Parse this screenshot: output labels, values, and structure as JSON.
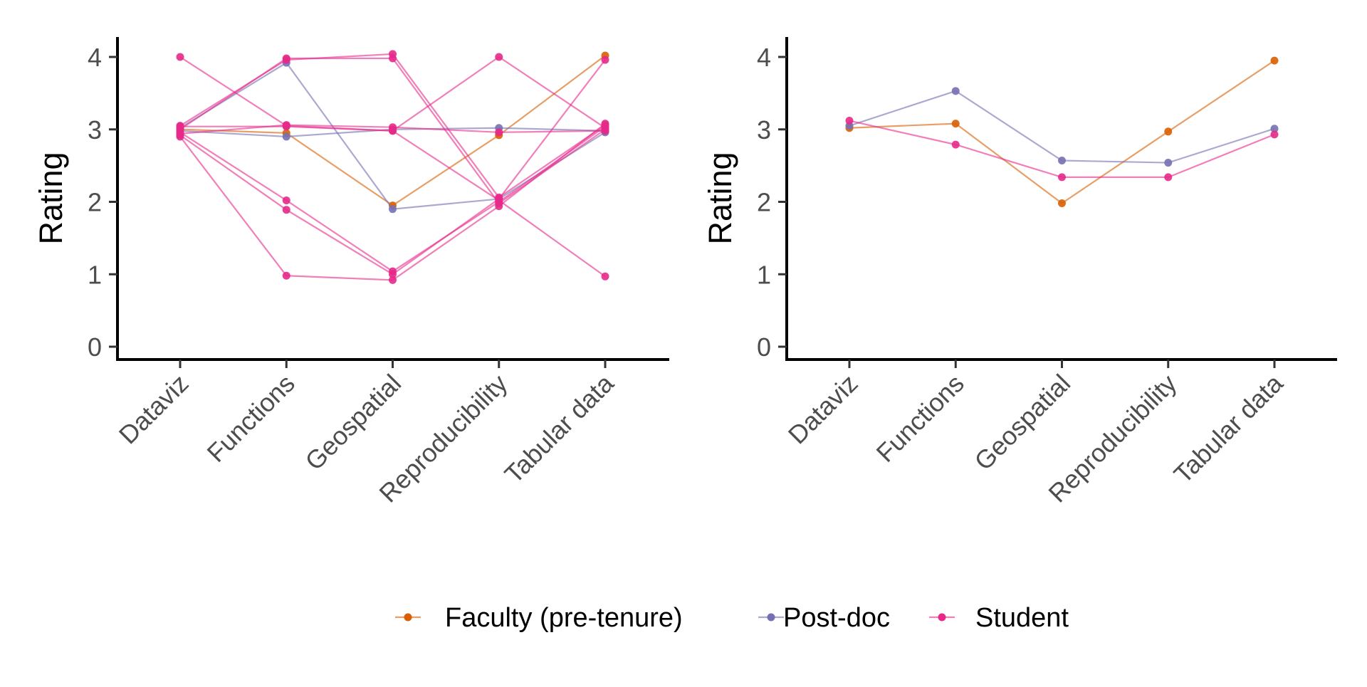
{
  "chart_data": [
    {
      "type": "line",
      "ylabel": "Rating",
      "xlabel": "",
      "ylim": [
        -0.2,
        4.25
      ],
      "yticks": [
        0,
        1,
        2,
        3,
        4
      ],
      "categories": [
        "Dataviz",
        "Functions",
        "Geospatial",
        "Reproducibility",
        "Tabular data"
      ],
      "grid": false,
      "series": [
        {
          "name": "Faculty (pre-tenure)",
          "values": [
            3.0,
            2.95,
            1.95,
            2.92,
            4.02
          ]
        },
        {
          "name": "Post-doc",
          "values": [
            3.02,
            3.92,
            1.9,
            2.04,
            2.96
          ]
        },
        {
          "name": "Post-doc",
          "values": [
            2.98,
            2.9,
            3.0,
            3.02,
            2.98
          ]
        },
        {
          "name": "Student",
          "values": [
            3.05,
            3.96,
            4.04,
            2.06,
            3.06
          ]
        },
        {
          "name": "Student",
          "values": [
            3.0,
            3.98,
            3.98,
            1.98,
            3.0
          ]
        },
        {
          "name": "Student",
          "values": [
            2.94,
            3.06,
            3.03,
            2.96,
            2.98
          ]
        },
        {
          "name": "Student",
          "values": [
            4.0,
            3.05,
            2.98,
            4.0,
            3.02
          ]
        },
        {
          "name": "Student",
          "values": [
            2.96,
            2.02,
            1.04,
            2.0,
            3.04
          ]
        },
        {
          "name": "Student",
          "values": [
            2.92,
            1.89,
            1.0,
            2.04,
            3.96
          ]
        },
        {
          "name": "Student",
          "values": [
            2.9,
            0.98,
            0.92,
            1.94,
            3.08
          ]
        },
        {
          "name": "Student",
          "values": [
            3.04,
            3.04,
            2.98,
            2.02,
            0.97
          ]
        }
      ]
    },
    {
      "type": "line",
      "ylabel": "Rating",
      "xlabel": "",
      "ylim": [
        -0.2,
        4.25
      ],
      "yticks": [
        0,
        1,
        2,
        3,
        4
      ],
      "categories": [
        "Dataviz",
        "Functions",
        "Geospatial",
        "Reproducibility",
        "Tabular data"
      ],
      "grid": false,
      "series": [
        {
          "name": "Faculty (pre-tenure)",
          "values": [
            3.02,
            3.08,
            1.98,
            2.97,
            3.95
          ]
        },
        {
          "name": "Post-doc",
          "values": [
            3.05,
            3.53,
            2.57,
            2.54,
            3.01
          ]
        },
        {
          "name": "Student",
          "values": [
            3.12,
            2.79,
            2.34,
            2.34,
            2.93
          ]
        }
      ]
    }
  ],
  "legend": {
    "placement": "bottom",
    "items": [
      {
        "label": "Faculty (pre-tenure)",
        "color": "#d95f02"
      },
      {
        "label": "Post-doc",
        "color": "#7570b3"
      },
      {
        "label": "Student",
        "color": "#e7298a"
      }
    ]
  },
  "colors": {
    "Faculty (pre-tenure)": "#d95f02",
    "Post-doc": "#7570b3",
    "Student": "#e7298a"
  }
}
